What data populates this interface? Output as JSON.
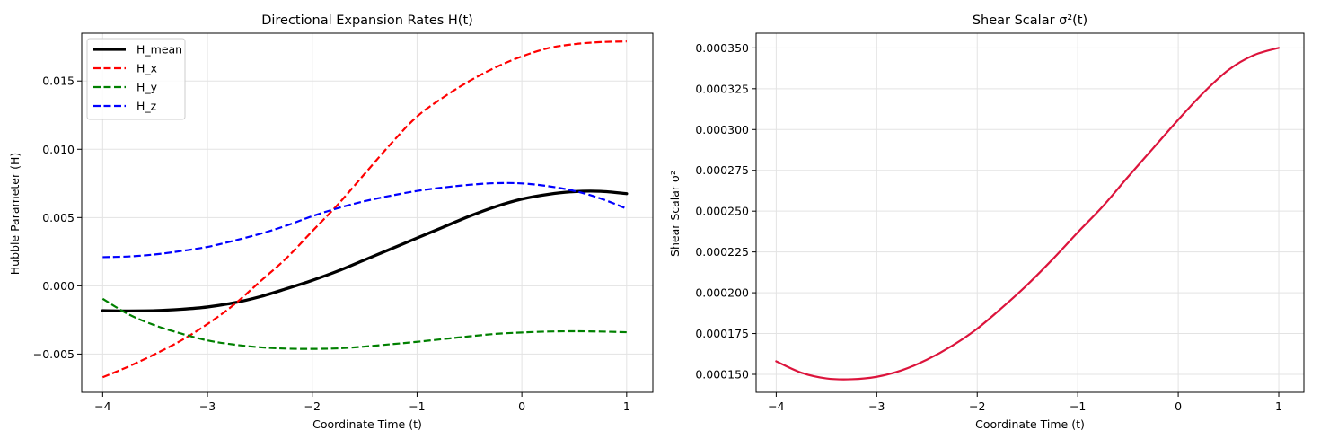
{
  "chart_data": [
    {
      "type": "line",
      "title": "Directional Expansion Rates H(t)",
      "xlabel": "Coordinate Time (t)",
      "ylabel": "Hubble Parameter (H)",
      "xlim": [
        -4.2,
        1.25
      ],
      "ylim": [
        -0.0078,
        0.0185
      ],
      "xticks": [
        -4,
        -3,
        -2,
        -1,
        0,
        1
      ],
      "xtick_labels": [
        "−4",
        "−3",
        "−2",
        "−1",
        "0",
        "1"
      ],
      "yticks": [
        -0.005,
        0.0,
        0.005,
        0.01,
        0.015
      ],
      "ytick_labels": [
        "−0.005",
        "0.000",
        "0.005",
        "0.010",
        "0.015"
      ],
      "grid": true,
      "legend_position": "upper-left",
      "x": [
        -4.0,
        -3.75,
        -3.5,
        -3.25,
        -3.0,
        -2.75,
        -2.5,
        -2.25,
        -2.0,
        -1.75,
        -1.5,
        -1.25,
        -1.0,
        -0.75,
        -0.5,
        -0.25,
        0.0,
        0.25,
        0.5,
        0.75,
        1.0
      ],
      "series": [
        {
          "name": "H_mean",
          "color": "#000000",
          "dash": "solid",
          "width": 3.3,
          "values": [
            -0.00182,
            -0.00184,
            -0.00182,
            -0.00172,
            -0.00155,
            -0.00125,
            -0.0008,
            -0.00022,
            0.0004,
            0.0011,
            0.0019,
            0.0027,
            0.0035,
            0.0043,
            0.0051,
            0.0058,
            0.00635,
            0.0067,
            0.0069,
            0.00692,
            0.00675
          ]
        },
        {
          "name": "H_x",
          "color": "#ff0000",
          "dash": "dashed",
          "width": 2.2,
          "values": [
            -0.0067,
            -0.0059,
            -0.005,
            -0.004,
            -0.0028,
            -0.0014,
            0.0003,
            0.002,
            0.004,
            0.006,
            0.0082,
            0.0104,
            0.0124,
            0.0138,
            0.015,
            0.016,
            0.0168,
            0.0174,
            0.0177,
            0.01785,
            0.0179
          ]
        },
        {
          "name": "H_y",
          "color": "#008000",
          "dash": "dashed",
          "width": 2.2,
          "values": [
            -0.00095,
            -0.0021,
            -0.0029,
            -0.0035,
            -0.004,
            -0.0043,
            -0.0045,
            -0.0046,
            -0.00462,
            -0.00458,
            -0.00445,
            -0.00428,
            -0.0041,
            -0.0039,
            -0.0037,
            -0.00352,
            -0.00342,
            -0.00335,
            -0.00333,
            -0.00335,
            -0.0034
          ]
        },
        {
          "name": "H_z",
          "color": "#0000ff",
          "dash": "dashed",
          "width": 2.2,
          "values": [
            0.0021,
            0.00215,
            0.0023,
            0.00255,
            0.00285,
            0.0033,
            0.0038,
            0.0044,
            0.0051,
            0.0057,
            0.0062,
            0.0066,
            0.00695,
            0.0072,
            0.0074,
            0.00752,
            0.0075,
            0.0073,
            0.00695,
            0.0064,
            0.00565
          ]
        }
      ]
    },
    {
      "type": "line",
      "title": "Shear Scalar σ²(t)",
      "xlabel": "Coordinate Time (t)",
      "ylabel": "Shear Scalar σ²",
      "xlim": [
        -4.2,
        1.25
      ],
      "ylim": [
        0.000139,
        0.000359
      ],
      "xticks": [
        -4,
        -3,
        -2,
        -1,
        0,
        1
      ],
      "xtick_labels": [
        "−4",
        "−3",
        "−2",
        "−1",
        "0",
        "1"
      ],
      "yticks": [
        0.00015,
        0.000175,
        0.0002,
        0.000225,
        0.00025,
        0.000275,
        0.0003,
        0.000325,
        0.00035
      ],
      "ytick_labels": [
        "0.000150",
        "0.000175",
        "0.000200",
        "0.000225",
        "0.000250",
        "0.000275",
        "0.000300",
        "0.000325",
        "0.000350"
      ],
      "grid": true,
      "x": [
        -4.0,
        -3.75,
        -3.5,
        -3.25,
        -3.0,
        -2.75,
        -2.5,
        -2.25,
        -2.0,
        -1.75,
        -1.5,
        -1.25,
        -1.0,
        -0.75,
        -0.5,
        -0.25,
        0.0,
        0.25,
        0.5,
        0.75,
        1.0
      ],
      "series": [
        {
          "name": "",
          "color": "#dc143c",
          "dash": "solid",
          "width": 2.2,
          "values": [
            0.000158,
            0.000151,
            0.0001475,
            0.000147,
            0.0001485,
            0.0001525,
            0.000159,
            0.0001675,
            0.000178,
            0.000191,
            0.000205,
            0.0002205,
            0.000237,
            0.000253,
            0.000271,
            0.0002885,
            0.000306,
            0.0003225,
            0.0003365,
            0.0003455,
            0.00035
          ]
        }
      ]
    }
  ]
}
